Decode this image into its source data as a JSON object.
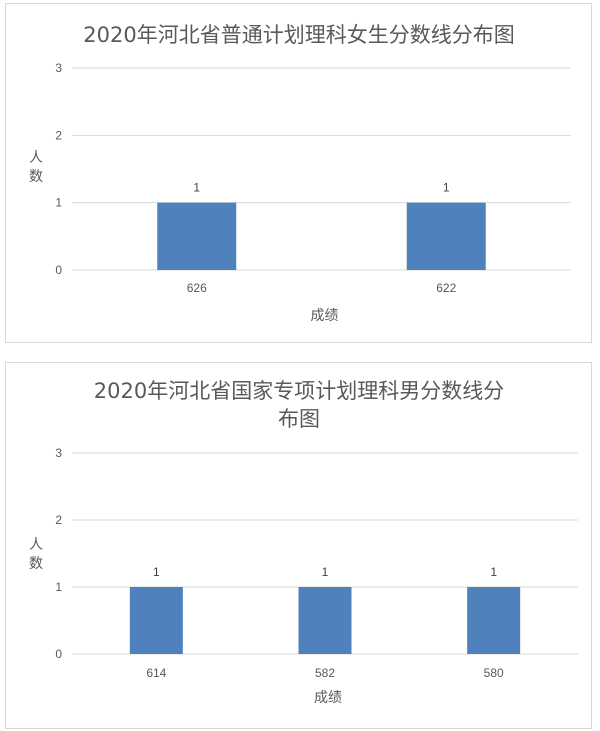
{
  "chart_data": [
    {
      "type": "bar",
      "title": "2020年河北省普通计划理科女生分数线分布图",
      "xlabel": "成绩",
      "ylabel": "人数",
      "categories": [
        "626",
        "622"
      ],
      "values": [
        1,
        1
      ],
      "data_labels": [
        "1",
        "1"
      ],
      "ylim": [
        0,
        3
      ],
      "yticks": [
        "0",
        "1",
        "2",
        "3"
      ],
      "grid": true,
      "legend": "none",
      "bar_color": "#4f81bd"
    },
    {
      "type": "bar",
      "title": "2020年河北省国家专项计划理科男分数线分布图",
      "xlabel": "成绩",
      "ylabel": "人数",
      "categories": [
        "614",
        "582",
        "580"
      ],
      "values": [
        1,
        1,
        1
      ],
      "data_labels": [
        "1",
        "1",
        "1"
      ],
      "ylim": [
        0,
        3
      ],
      "yticks": [
        "0",
        "1",
        "2",
        "3"
      ],
      "grid": true,
      "legend": "none",
      "bar_color": "#4f81bd"
    }
  ]
}
